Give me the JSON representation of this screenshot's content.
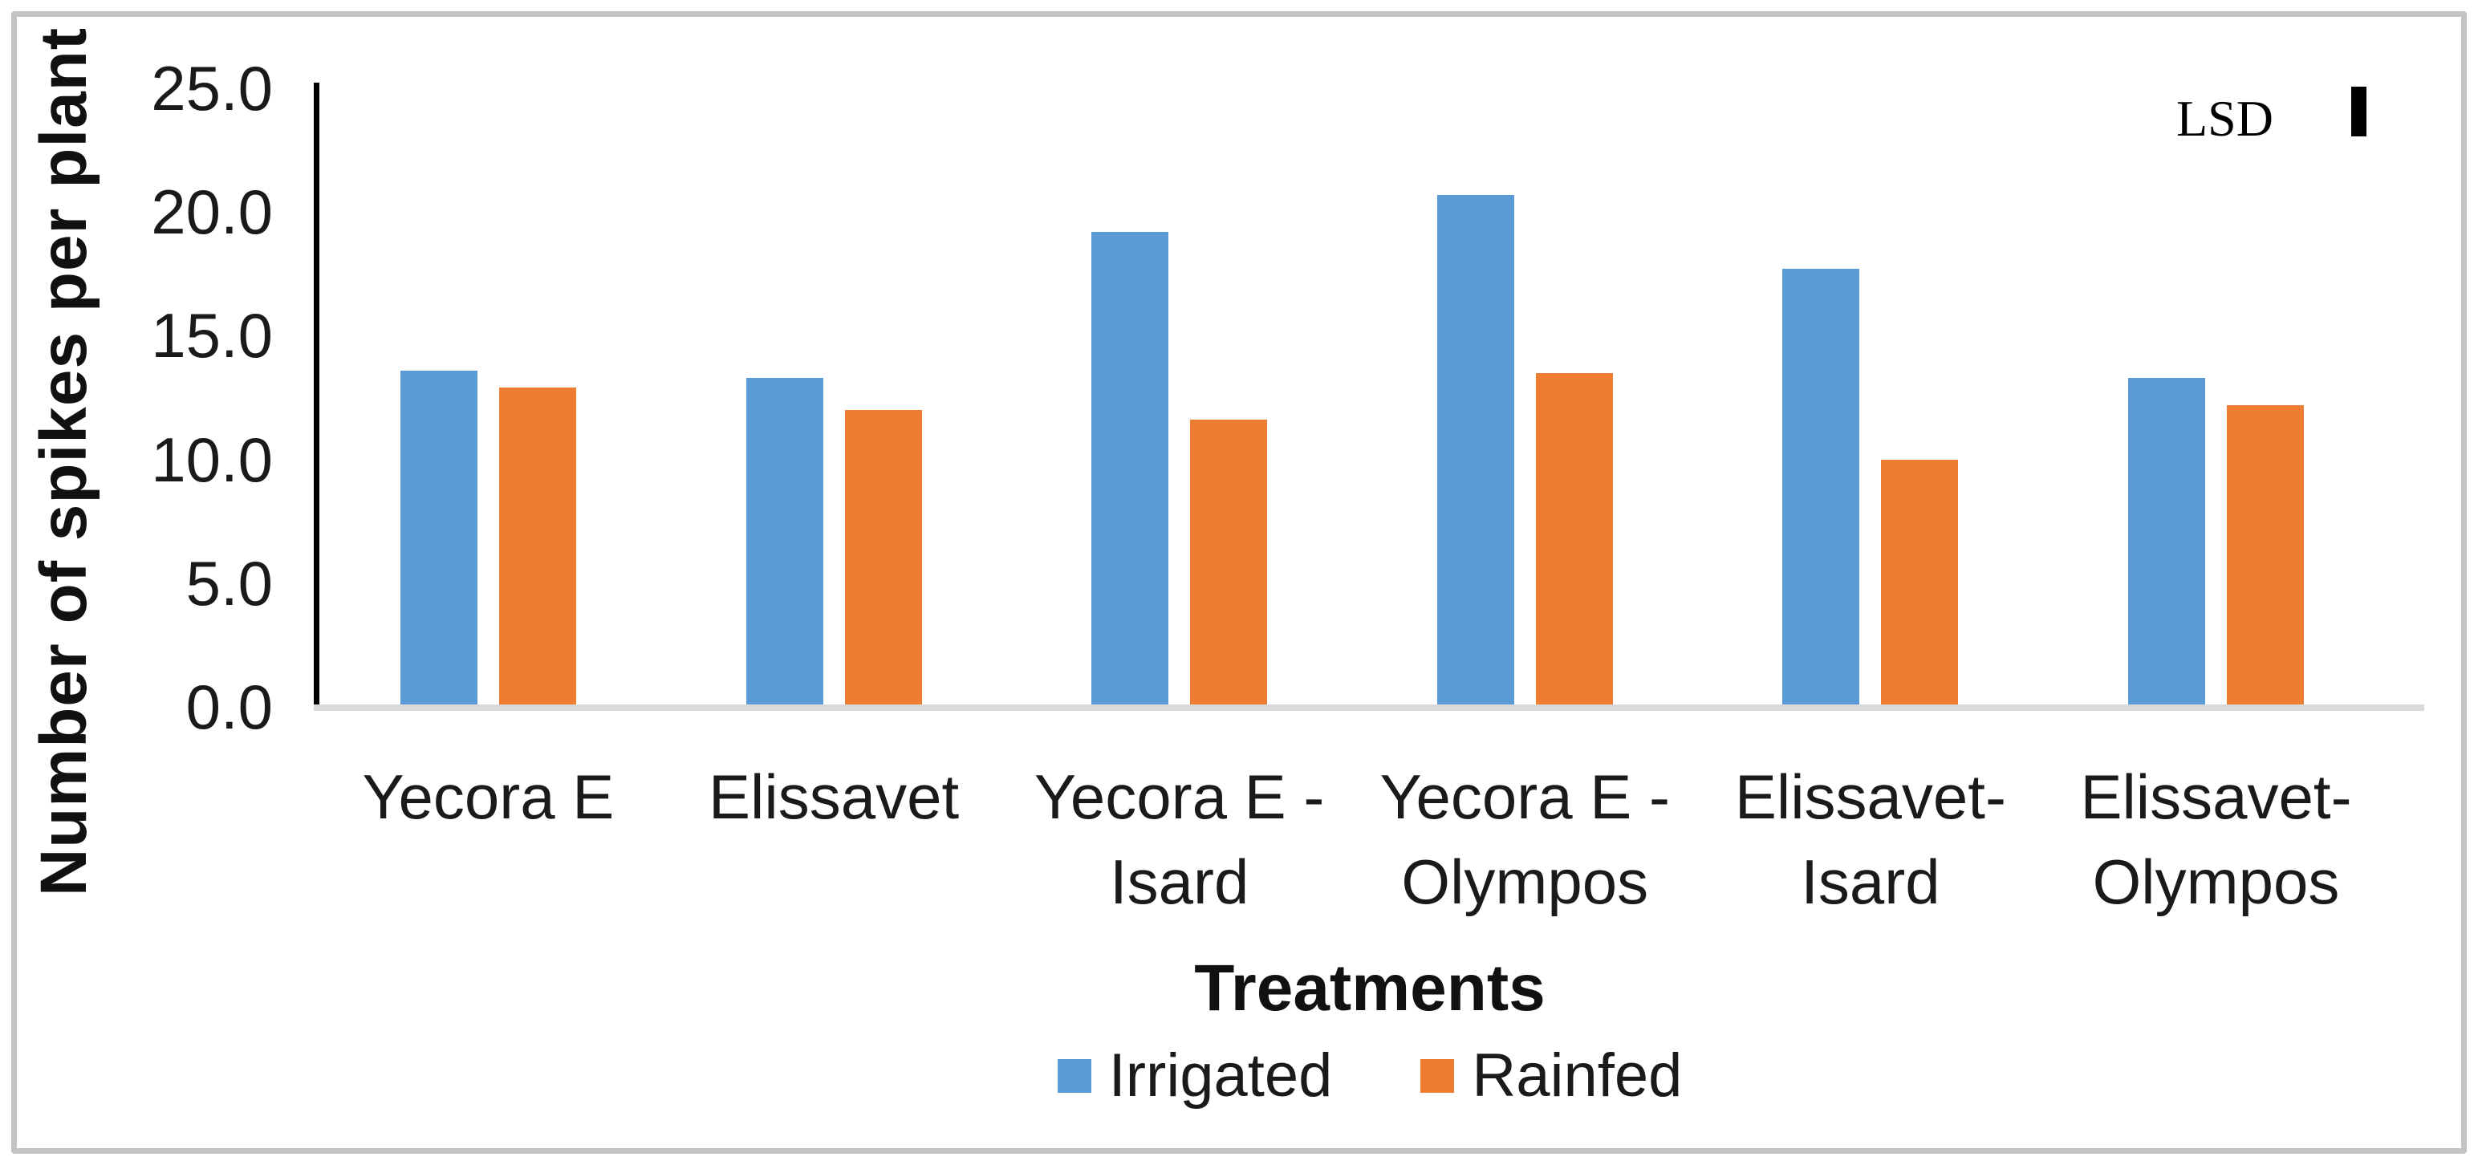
{
  "figure": {
    "y_axis_title": "Number of spikes per plant",
    "x_axis_title": "Treatments",
    "lsd_label": "LSD"
  },
  "chart_data": {
    "type": "bar",
    "title": "",
    "xlabel": "Treatments",
    "ylabel": "Number of spikes per plant",
    "ylim": [
      0,
      25
    ],
    "grid": false,
    "legend_position": "bottom-center",
    "ytick_values": [
      0,
      5,
      10,
      15,
      20,
      25
    ],
    "ytick_labels": [
      "0.0",
      "5.0",
      "10.0",
      "15.0",
      "20.0",
      "25.0"
    ],
    "categories": [
      "Yecora E",
      "Elissavet",
      "Yecora E - Isard",
      "Yecora E - Olympos",
      "Elissavet- Isard",
      "Elissavet- Olympos"
    ],
    "category_label_lines": [
      [
        "Yecora E"
      ],
      [
        "Elissavet"
      ],
      [
        "Yecora E -",
        "Isard"
      ],
      [
        "Yecora E -",
        "Olympos"
      ],
      [
        "Elissavet-",
        "Isard"
      ],
      [
        "Elissavet-",
        "Olympos"
      ]
    ],
    "series": [
      {
        "name": "Irrigated",
        "color": "#5B9BD5",
        "values": [
          13.6,
          13.3,
          19.2,
          20.7,
          17.7,
          13.3
        ]
      },
      {
        "name": "Rainfed",
        "color": "#ED7D31",
        "values": [
          12.9,
          12.0,
          11.6,
          13.5,
          10.0,
          12.2
        ]
      }
    ],
    "annotations": [
      {
        "label": "LSD",
        "type": "error-bar",
        "value_span": 2.0
      }
    ]
  },
  "colors": {
    "irrigated": "#5B9BD5",
    "rainfed": "#ED7D31",
    "axis_line": "#000000",
    "baseline": "#D9D9D9",
    "figure_border": "#C3C3C3",
    "text": "#1A1A1A",
    "lsd_marker": "#000000"
  }
}
